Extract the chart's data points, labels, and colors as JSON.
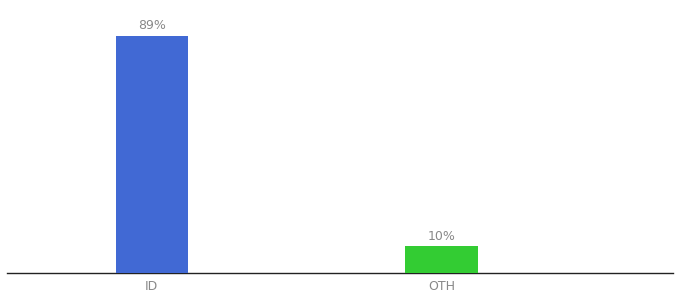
{
  "categories": [
    "ID",
    "OTH"
  ],
  "values": [
    89,
    10
  ],
  "bar_colors": [
    "#4169d4",
    "#33cc33"
  ],
  "label_texts": [
    "89%",
    "10%"
  ],
  "background_color": "#ffffff",
  "figsize": [
    6.8,
    3.0
  ],
  "dpi": 100,
  "ylim": [
    0,
    100
  ],
  "bar_width": 0.25,
  "x_positions": [
    1,
    2
  ],
  "xlim": [
    0.5,
    2.8
  ]
}
